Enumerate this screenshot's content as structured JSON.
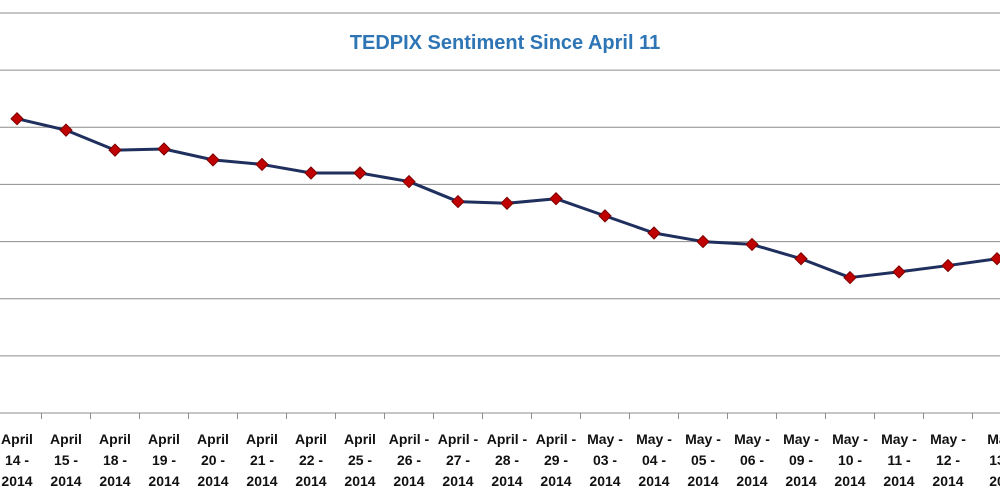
{
  "chart_data": {
    "type": "line",
    "title": "TEDPIX Sentiment Since April 11",
    "xlabel": "",
    "ylabel": "",
    "ylim": [
      0,
      7
    ],
    "y_gridlines": [
      1,
      2,
      3,
      4,
      5,
      6,
      7
    ],
    "categories": [
      [
        "April",
        "14 -",
        "2014"
      ],
      [
        "April",
        "15 -",
        "2014"
      ],
      [
        "April",
        "18 -",
        "2014"
      ],
      [
        "April",
        "19 -",
        "2014"
      ],
      [
        "April",
        "20 -",
        "2014"
      ],
      [
        "April",
        "21 -",
        "2014"
      ],
      [
        "April",
        "22 -",
        "2014"
      ],
      [
        "April",
        "25 -",
        "2014"
      ],
      [
        "April -",
        "26 -",
        "2014"
      ],
      [
        "April -",
        "27 -",
        "2014"
      ],
      [
        "April -",
        "28 -",
        "2014"
      ],
      [
        "April -",
        "29 -",
        "2014"
      ],
      [
        "May -",
        "03 -",
        "2014"
      ],
      [
        "May -",
        "04 -",
        "2014"
      ],
      [
        "May -",
        "05 -",
        "2014"
      ],
      [
        "May -",
        "06 -",
        "2014"
      ],
      [
        "May -",
        "09 -",
        "2014"
      ],
      [
        "May -",
        "10 -",
        "2014"
      ],
      [
        "May -",
        "11 -",
        "2014"
      ],
      [
        "May -",
        "12 -",
        "2014"
      ],
      [
        "Ma",
        "13",
        "20"
      ]
    ],
    "series": [
      {
        "name": "TEDPIX Sentiment",
        "color": "#1f2f5e",
        "marker_color": "#c00000",
        "values": [
          5.15,
          4.95,
          4.6,
          4.62,
          4.43,
          4.35,
          4.2,
          4.2,
          4.05,
          3.7,
          3.67,
          3.75,
          3.45,
          3.15,
          3.0,
          2.95,
          2.7,
          2.37,
          2.47,
          2.58,
          2.7
        ]
      }
    ]
  }
}
